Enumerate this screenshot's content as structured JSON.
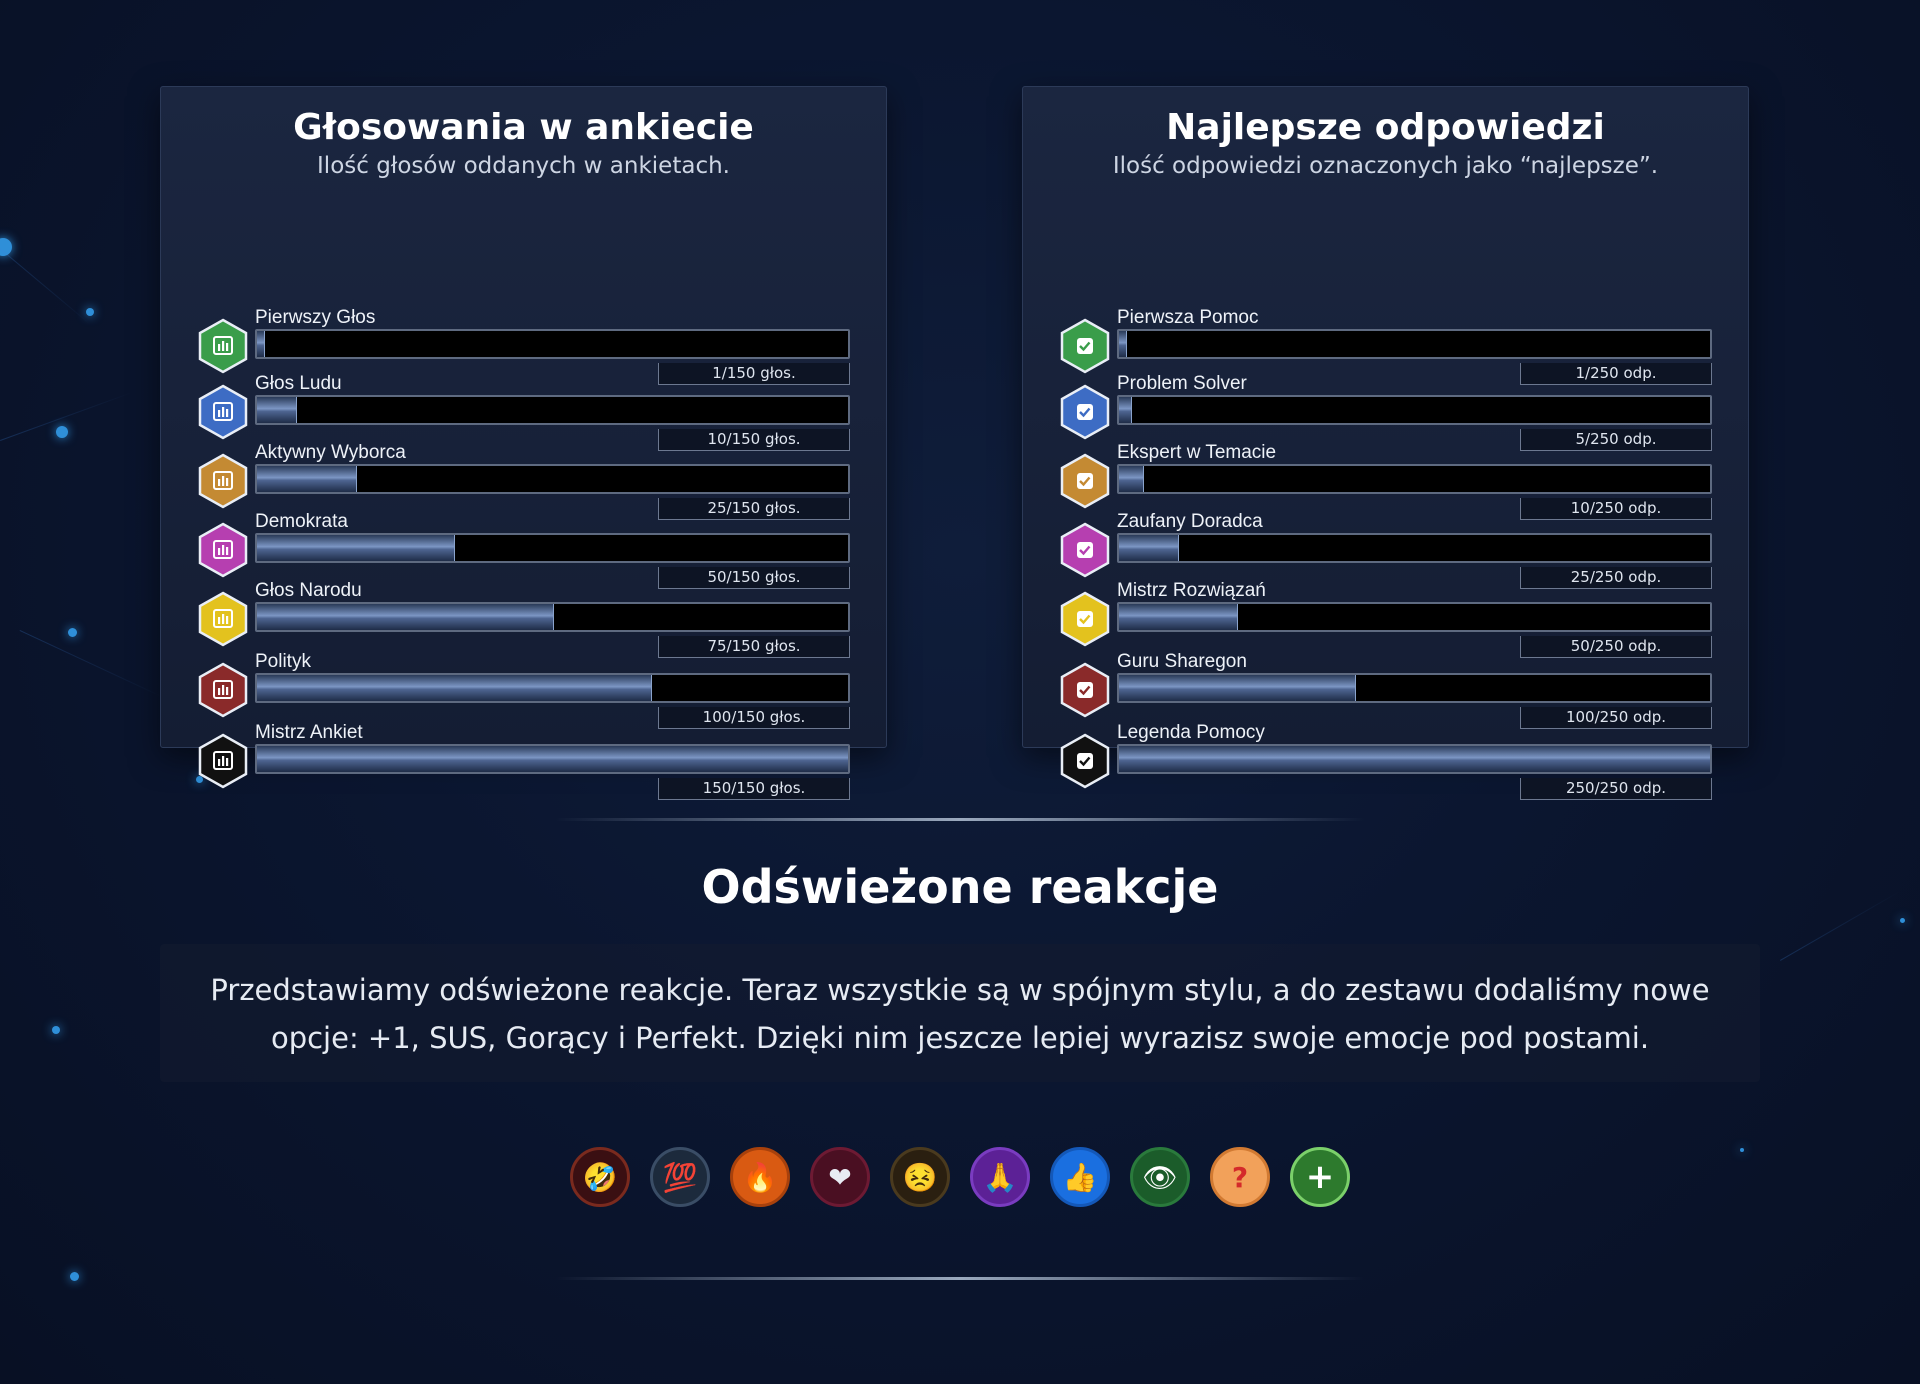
{
  "polls_panel": {
    "title": "Głosowania w ankiecie",
    "subtitle": "Ilość głosów oddanych w ankietach.",
    "icon": "bar-chart-icon",
    "badges": [
      {
        "name": "Pierwszy Głos",
        "count": "1/150 głos.",
        "progress": 0.0067,
        "color": "#3a9d4a"
      },
      {
        "name": "Głos Ludu",
        "count": "10/150 głos.",
        "progress": 0.0667,
        "color": "#3d6cc4"
      },
      {
        "name": "Aktywny Wyborca",
        "count": "25/150 głos.",
        "progress": 0.1667,
        "color": "#c48a33"
      },
      {
        "name": "Demokrata",
        "count": "50/150 głos.",
        "progress": 0.3333,
        "color": "#b63fb0"
      },
      {
        "name": "Głos Narodu",
        "count": "75/150 głos.",
        "progress": 0.5,
        "color": "#e3c21e"
      },
      {
        "name": "Polityk",
        "count": "100/150 głos.",
        "progress": 0.6667,
        "color": "#8a2a2a"
      },
      {
        "name": "Mistrz Ankiet",
        "count": "150/150 głos.",
        "progress": 1.0,
        "color": "#111111"
      }
    ]
  },
  "answers_panel": {
    "title": "Najlepsze odpowiedzi",
    "subtitle": "Ilość odpowiedzi oznaczonych jako “najlepsze”.",
    "icon": "checkmark-icon",
    "badges": [
      {
        "name": "Pierwsza Pomoc",
        "count": "1/250 odp.",
        "progress": 0.004,
        "color": "#3a9d4a"
      },
      {
        "name": "Problem Solver",
        "count": "5/250 odp.",
        "progress": 0.02,
        "color": "#3d6cc4"
      },
      {
        "name": "Ekspert w Temacie",
        "count": "10/250 odp.",
        "progress": 0.04,
        "color": "#c48a33"
      },
      {
        "name": "Zaufany Doradca",
        "count": "25/250 odp.",
        "progress": 0.1,
        "color": "#b63fb0"
      },
      {
        "name": "Mistrz Rozwiązań",
        "count": "50/250 odp.",
        "progress": 0.2,
        "color": "#e3c21e"
      },
      {
        "name": "Guru Sharegon",
        "count": "100/250 odp.",
        "progress": 0.4,
        "color": "#8a2a2a"
      },
      {
        "name": "Legenda Pomocy",
        "count": "250/250 odp.",
        "progress": 1.0,
        "color": "#111111"
      }
    ]
  },
  "reactions_section": {
    "title": "Odświeżone reakcje",
    "description": "Przedstawiamy odświeżone reakcje. Teraz wszystkie są w spójnym stylu, a do zestawu dodaliśmy nowe opcje: +1, SUS, Gorący i Perfekt. Dzięki nim jeszcze lepiej wyrazisz swoje emocje pod postami.",
    "reactions": [
      {
        "icon": "laughing-emoji-icon",
        "glyph": "🤣",
        "bg": "#3a0f12",
        "border": "#7a2a1e"
      },
      {
        "icon": "hundred-points-icon",
        "glyph": "💯",
        "bg": "#1c2a3c",
        "border": "#3a4d66"
      },
      {
        "icon": "fire-icon",
        "glyph": "🔥",
        "bg": "#d95a12",
        "border": "#a8410c"
      },
      {
        "icon": "heart-icon",
        "glyph": "❤",
        "bg": "#4a0f22",
        "border": "#6d1a33"
      },
      {
        "icon": "pleading-face-icon",
        "glyph": "😣",
        "bg": "#2a1f10",
        "border": "#4a3a1e"
      },
      {
        "icon": "praying-hands-icon",
        "glyph": "🙏",
        "bg": "#5c2196",
        "border": "#7a3cc0"
      },
      {
        "icon": "thumbs-up-icon",
        "glyph": "👍",
        "bg": "#1a6fe0",
        "border": "#1458b8"
      },
      {
        "icon": "eye-icon",
        "glyph": "👁",
        "bg": "#1b5c2a",
        "border": "#2a7a3c"
      },
      {
        "icon": "question-mark-icon",
        "glyph": "?",
        "bg": "#f2a15a",
        "border": "#d27a32"
      },
      {
        "icon": "plus-icon",
        "glyph": "+",
        "bg": "#2d7a2d",
        "border": "#7bd06a"
      }
    ]
  }
}
